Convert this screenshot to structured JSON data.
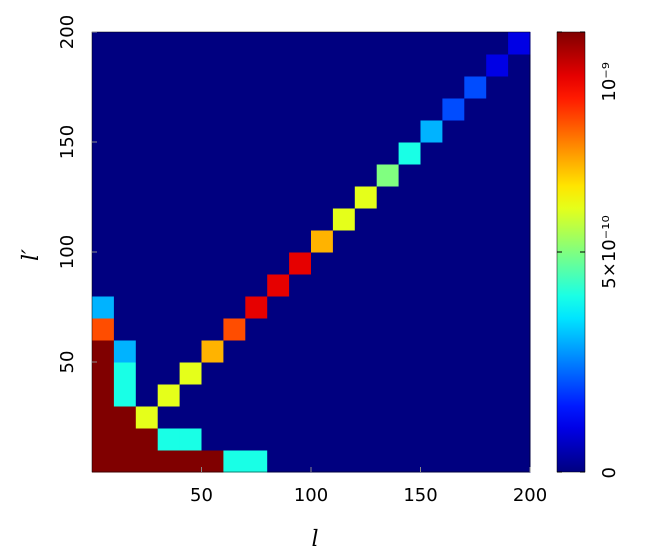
{
  "chart_data": {
    "type": "heatmap",
    "x_label": "l",
    "y_label": "l′",
    "xlim": [
      0,
      200
    ],
    "ylim": [
      0,
      200
    ],
    "xticks": [
      50,
      100,
      150,
      200
    ],
    "yticks": [
      50,
      100,
      150,
      200
    ],
    "zlim": [
      0,
      1e-09
    ],
    "zticks": [
      {
        "value": 0,
        "label": "0"
      },
      {
        "value": 5e-10,
        "label": "5×10⁻¹⁰"
      },
      {
        "value": 1e-09,
        "label": "10⁻⁹"
      }
    ],
    "colormap": "jet",
    "z": [
      [
        1e-09,
        1e-09,
        1e-09,
        1e-09,
        1e-09,
        1e-09,
        4e-10,
        4e-10,
        0,
        0,
        0,
        0,
        0,
        0,
        0,
        0,
        0,
        0,
        0,
        0
      ],
      [
        1e-09,
        1e-09,
        1e-09,
        4e-10,
        4e-10,
        0,
        0,
        0,
        0,
        0,
        0,
        0,
        0,
        0,
        0,
        0,
        0,
        0,
        0,
        0
      ],
      [
        1e-09,
        1e-09,
        6e-10,
        0,
        0,
        0,
        0,
        0,
        0,
        0,
        0,
        0,
        0,
        0,
        0,
        0,
        0,
        0,
        0,
        0
      ],
      [
        1e-09,
        4e-10,
        0,
        6e-10,
        0,
        0,
        0,
        0,
        0,
        0,
        0,
        0,
        0,
        0,
        0,
        0,
        0,
        0,
        0,
        0
      ],
      [
        1e-09,
        4e-10,
        0,
        0,
        6e-10,
        0,
        0,
        0,
        0,
        0,
        0,
        0,
        0,
        0,
        0,
        0,
        0,
        0,
        0,
        0
      ],
      [
        1e-09,
        3e-10,
        0,
        0,
        0,
        7e-10,
        0,
        0,
        0,
        0,
        0,
        0,
        0,
        0,
        0,
        0,
        0,
        0,
        0,
        0
      ],
      [
        8e-10,
        0,
        0,
        0,
        0,
        0,
        8e-10,
        0,
        0,
        0,
        0,
        0,
        0,
        0,
        0,
        0,
        0,
        0,
        0,
        0
      ],
      [
        3e-10,
        0,
        0,
        0,
        0,
        0,
        0,
        9e-10,
        0,
        0,
        0,
        0,
        0,
        0,
        0,
        0,
        0,
        0,
        0,
        0
      ],
      [
        0,
        0,
        0,
        0,
        0,
        0,
        0,
        0,
        9e-10,
        0,
        0,
        0,
        0,
        0,
        0,
        0,
        0,
        0,
        0,
        0
      ],
      [
        0,
        0,
        0,
        0,
        0,
        0,
        0,
        0,
        0,
        9e-10,
        0,
        0,
        0,
        0,
        0,
        0,
        0,
        0,
        0,
        0
      ],
      [
        0,
        0,
        0,
        0,
        0,
        0,
        0,
        0,
        0,
        0,
        7e-10,
        0,
        0,
        0,
        0,
        0,
        0,
        0,
        0,
        0
      ],
      [
        0,
        0,
        0,
        0,
        0,
        0,
        0,
        0,
        0,
        0,
        0,
        6e-10,
        0,
        0,
        0,
        0,
        0,
        0,
        0,
        0
      ],
      [
        0,
        0,
        0,
        0,
        0,
        0,
        0,
        0,
        0,
        0,
        0,
        0,
        6e-10,
        0,
        0,
        0,
        0,
        0,
        0,
        0
      ],
      [
        0,
        0,
        0,
        0,
        0,
        0,
        0,
        0,
        0,
        0,
        0,
        0,
        0,
        5e-10,
        0,
        0,
        0,
        0,
        0,
        0
      ],
      [
        0,
        0,
        0,
        0,
        0,
        0,
        0,
        0,
        0,
        0,
        0,
        0,
        0,
        0,
        4e-10,
        0,
        0,
        0,
        0,
        0
      ],
      [
        0,
        0,
        0,
        0,
        0,
        0,
        0,
        0,
        0,
        0,
        0,
        0,
        0,
        0,
        0,
        3e-10,
        0,
        0,
        0,
        0
      ],
      [
        0,
        0,
        0,
        0,
        0,
        0,
        0,
        0,
        0,
        0,
        0,
        0,
        0,
        0,
        0,
        0,
        2e-10,
        0,
        0,
        0
      ],
      [
        0,
        0,
        0,
        0,
        0,
        0,
        0,
        0,
        0,
        0,
        0,
        0,
        0,
        0,
        0,
        0,
        0,
        2e-10,
        0,
        0
      ],
      [
        0,
        0,
        0,
        0,
        0,
        0,
        0,
        0,
        0,
        0,
        0,
        0,
        0,
        0,
        0,
        0,
        0,
        0,
        1e-10,
        0
      ],
      [
        0,
        0,
        0,
        0,
        0,
        0,
        0,
        0,
        0,
        0,
        0,
        0,
        0,
        0,
        0,
        0,
        0,
        0,
        0,
        1e-10
      ]
    ]
  }
}
